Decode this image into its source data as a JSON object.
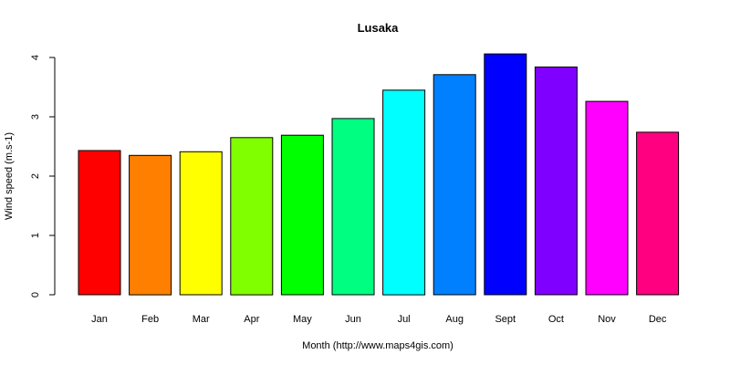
{
  "chart_data": {
    "type": "bar",
    "title": "Lusaka",
    "xlabel": "Month (http://www.maps4gis.com)",
    "ylabel": "Wind speed (m.s-1)",
    "ylim": [
      0,
      4
    ],
    "yticks": [
      0,
      1,
      2,
      3,
      4
    ],
    "categories": [
      "Jan",
      "Feb",
      "Mar",
      "Apr",
      "May",
      "Jun",
      "Jul",
      "Aug",
      "Sept",
      "Oct",
      "Nov",
      "Dec"
    ],
    "values": [
      2.43,
      2.35,
      2.41,
      2.65,
      2.69,
      2.97,
      3.45,
      3.71,
      4.06,
      3.84,
      3.26,
      2.74
    ],
    "colors": [
      "#FF0000",
      "#FF8000",
      "#FFFF00",
      "#80FF00",
      "#00FF00",
      "#00FF80",
      "#00FFFF",
      "#0080FF",
      "#0000FF",
      "#8000FF",
      "#FF00FF",
      "#FF0080"
    ],
    "grid": false,
    "legend": "none"
  }
}
